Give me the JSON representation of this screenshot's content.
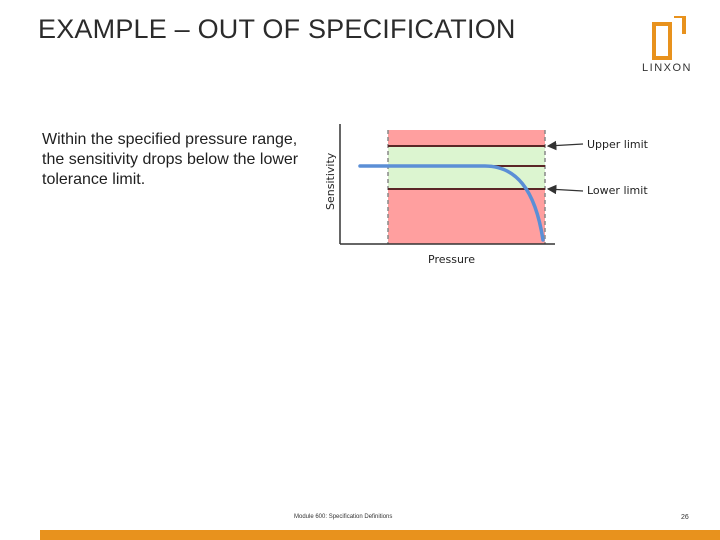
{
  "slide": {
    "title": "EXAMPLE – OUT OF SPECIFICATION",
    "description": "Within the specified pressure range, the sensitivity drops below the lower tolerance limit.",
    "footer": "Module 600: Specification Definitions",
    "page_number": "26"
  },
  "logo": {
    "text": "LINXON",
    "color": "#e8921d"
  },
  "diagram": {
    "y_axis_label": "Sensitivity",
    "x_axis_label": "Pressure",
    "upper_label": "Upper limit",
    "lower_label": "Lower limit"
  },
  "colors": {
    "out_of_spec": "#ff9f9f",
    "in_spec": "#dcf5d0",
    "limit_line": "#5a2626",
    "curve": "#5b8fd6",
    "accent": "#e8921d"
  }
}
